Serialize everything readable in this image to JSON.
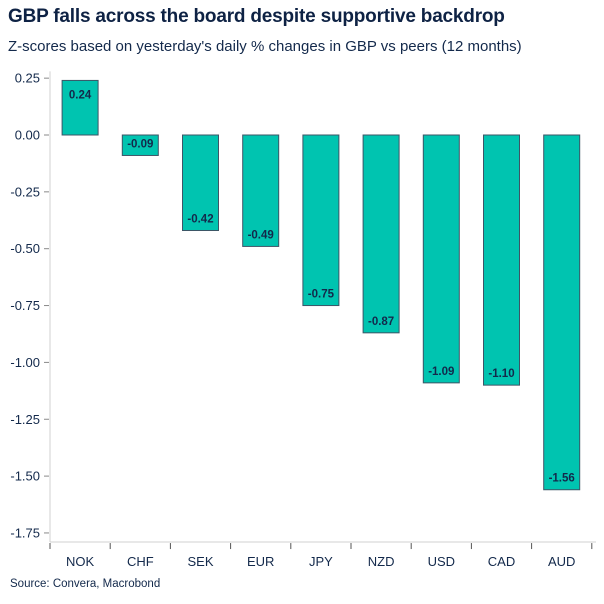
{
  "chart_data": {
    "type": "bar",
    "title": "GBP falls across the board despite supportive backdrop",
    "subtitle": "Z-scores based on yesterday's daily % changes in GBP vs peers (12 months)",
    "source": "Source: Convera, Macrobond",
    "categories": [
      "NOK",
      "CHF",
      "SEK",
      "EUR",
      "JPY",
      "NZD",
      "USD",
      "CAD",
      "AUD"
    ],
    "values": [
      0.24,
      -0.09,
      -0.42,
      -0.49,
      -0.75,
      -0.87,
      -1.09,
      -1.1,
      -1.56
    ],
    "data_labels": [
      "0.24",
      "-0.09",
      "-0.42",
      "-0.49",
      "-0.75",
      "-0.87",
      "-1.09",
      "-1.10",
      "-1.56"
    ],
    "yticks": [
      "0.25",
      "0.00",
      "-0.25",
      "-0.50",
      "-0.75",
      "-1.00",
      "-1.25",
      "-1.50",
      "-1.75"
    ],
    "ylim": [
      -1.79,
      0.28
    ],
    "grid": false,
    "bar_color": "#00c4b0",
    "bar_edge_color": "#3d5566"
  }
}
